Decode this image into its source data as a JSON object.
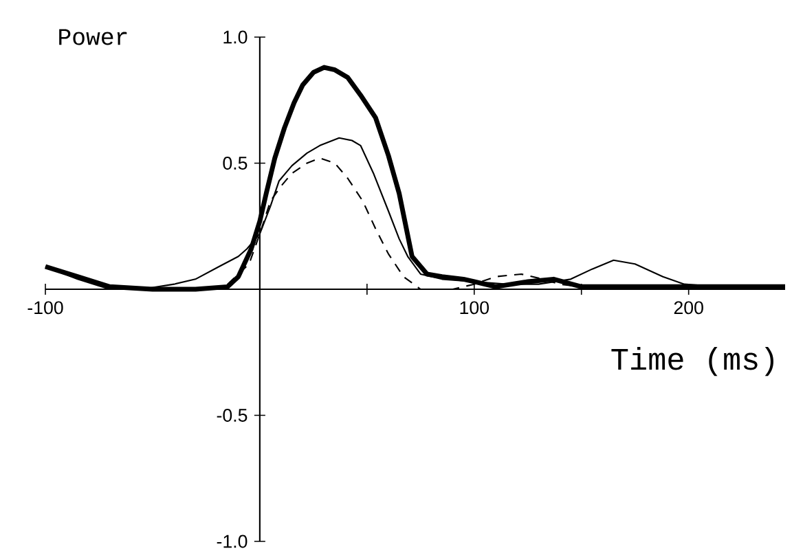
{
  "chart_data": {
    "type": "line",
    "xlabel": "Time (ms)",
    "ylabel": "Power",
    "xlim": [
      -100,
      245
    ],
    "ylim": [
      -1,
      1
    ],
    "xticks": [
      -100,
      {
        "value": 50,
        "label": null
      },
      100,
      {
        "value": 150,
        "label": null
      },
      200
    ],
    "yticks": [
      {
        "value": -1,
        "label": "-1.0"
      },
      -0.5,
      0.5,
      {
        "value": 1,
        "label": "1.0"
      }
    ],
    "series": [
      {
        "color": "#000000",
        "line_style": "solid",
        "x": [
          -100,
          -85,
          -70,
          -50,
          -30,
          -15,
          -10,
          -4,
          0,
          3,
          7,
          11.5,
          16,
          20,
          25,
          30,
          35,
          41,
          47,
          54,
          60,
          65,
          71,
          78,
          85,
          95,
          100,
          110,
          125,
          137,
          150,
          175,
          200,
          225,
          245
        ],
        "values": [
          0.09,
          0.05,
          0.01,
          0.0,
          0.0,
          0.01,
          0.05,
          0.16,
          0.27,
          0.38,
          0.52,
          0.64,
          0.74,
          0.81,
          0.86,
          0.88,
          0.87,
          0.84,
          0.77,
          0.68,
          0.53,
          0.38,
          0.13,
          0.06,
          0.05,
          0.04,
          0.03,
          0.01,
          0.03,
          0.04,
          0.01,
          0.01,
          0.01,
          0.01,
          0.01
        ]
      },
      {
        "color": "#000000",
        "line_style": "solid",
        "x": [
          -100,
          -85,
          -70,
          -55,
          -40,
          -30,
          -19,
          -10,
          -6,
          0,
          5,
          9,
          15,
          22,
          28,
          37,
          43,
          47,
          53,
          60,
          65,
          69,
          75,
          85,
          100,
          115,
          130,
          145,
          155,
          165,
          175,
          188,
          198,
          215,
          245
        ],
        "values": [
          0.09,
          0.04,
          0.0,
          0.0,
          0.02,
          0.04,
          0.09,
          0.13,
          0.16,
          0.22,
          0.33,
          0.43,
          0.49,
          0.54,
          0.57,
          0.6,
          0.59,
          0.57,
          0.46,
          0.31,
          0.2,
          0.13,
          0.06,
          0.04,
          0.03,
          0.02,
          0.02,
          0.04,
          0.08,
          0.115,
          0.1,
          0.05,
          0.02,
          0.01,
          0.01
        ]
      },
      {
        "color": "#000000",
        "line_style": "dashed",
        "x": [
          -15,
          -5,
          0,
          5,
          10,
          15,
          22,
          28,
          35,
          41,
          48,
          54,
          60,
          67,
          75,
          90,
          100,
          110,
          122,
          132,
          140,
          160,
          200,
          245
        ],
        "values": [
          0.02,
          0.1,
          0.22,
          0.35,
          0.41,
          0.46,
          0.5,
          0.52,
          0.5,
          0.44,
          0.35,
          0.24,
          0.14,
          0.05,
          0.0,
          0.0,
          0.02,
          0.05,
          0.06,
          0.04,
          0.02,
          0.0,
          0.0,
          0.0
        ]
      }
    ]
  }
}
